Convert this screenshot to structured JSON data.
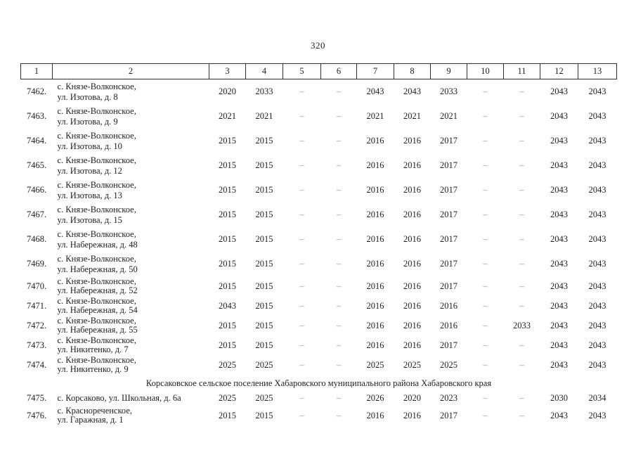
{
  "page": {
    "number": "320"
  },
  "table": {
    "headers": [
      "1",
      "2",
      "3",
      "4",
      "5",
      "6",
      "7",
      "8",
      "9",
      "10",
      "11",
      "12",
      "13"
    ],
    "rows": [
      {
        "type": "entry",
        "spacing": "loose",
        "num": "7462.",
        "address": [
          "с. Князе-Волконское,",
          "ул. Изотова, д. 8"
        ],
        "cols": [
          "2020",
          "2033",
          "–",
          "–",
          "2043",
          "2043",
          "2033",
          "–",
          "–",
          "2043",
          "2043"
        ]
      },
      {
        "type": "entry",
        "spacing": "loose",
        "num": "7463.",
        "address": [
          "с. Князе-Волконское,",
          "ул. Изотова, д. 9"
        ],
        "cols": [
          "2021",
          "2021",
          "–",
          "–",
          "2021",
          "2021",
          "2021",
          "–",
          "–",
          "2043",
          "2043"
        ]
      },
      {
        "type": "entry",
        "spacing": "loose",
        "num": "7464.",
        "address": [
          "с. Князе-Волконское,",
          "ул. Изотова, д. 10"
        ],
        "cols": [
          "2015",
          "2015",
          "–",
          "–",
          "2016",
          "2016",
          "2017",
          "–",
          "–",
          "2043",
          "2043"
        ]
      },
      {
        "type": "entry",
        "spacing": "loose",
        "num": "7465.",
        "address": [
          "с. Князе-Волконское,",
          "ул. Изотова, д. 12"
        ],
        "cols": [
          "2015",
          "2015",
          "–",
          "–",
          "2016",
          "2016",
          "2017",
          "–",
          "–",
          "2043",
          "2043"
        ]
      },
      {
        "type": "entry",
        "spacing": "loose",
        "num": "7466.",
        "address": [
          "с. Князе-Волконское,",
          "ул. Изотова, д. 13"
        ],
        "cols": [
          "2015",
          "2015",
          "–",
          "–",
          "2016",
          "2016",
          "2017",
          "–",
          "–",
          "2043",
          "2043"
        ]
      },
      {
        "type": "entry",
        "spacing": "loose",
        "num": "7467.",
        "address": [
          "с. Князе-Волконское,",
          "ул. Изотова, д. 15"
        ],
        "cols": [
          "2015",
          "2015",
          "–",
          "–",
          "2016",
          "2016",
          "2017",
          "–",
          "–",
          "2043",
          "2043"
        ]
      },
      {
        "type": "entry",
        "spacing": "loose",
        "num": "7468.",
        "address": [
          "с. Князе-Волконское,",
          "ул. Набережная, д. 48"
        ],
        "cols": [
          "2015",
          "2015",
          "–",
          "–",
          "2016",
          "2016",
          "2017",
          "–",
          "–",
          "2043",
          "2043"
        ]
      },
      {
        "type": "entry",
        "spacing": "loose",
        "num": "7469.",
        "address": [
          "с. Князе-Волконское,",
          "ул. Набережная, д. 50"
        ],
        "cols": [
          "2015",
          "2015",
          "–",
          "–",
          "2016",
          "2016",
          "2017",
          "–",
          "–",
          "2043",
          "2043"
        ]
      },
      {
        "type": "entry",
        "spacing": "tight",
        "num": "7470.",
        "address": [
          "с. Князе-Волконское,",
          "ул. Набережная, д. 52"
        ],
        "cols": [
          "2015",
          "2015",
          "–",
          "–",
          "2016",
          "2016",
          "2017",
          "–",
          "–",
          "2043",
          "2043"
        ]
      },
      {
        "type": "entry",
        "spacing": "tight",
        "num": "7471.",
        "address": [
          "с. Князе-Волконское,",
          "ул. Набережная, д. 54"
        ],
        "cols": [
          "2043",
          "2015",
          "–",
          "–",
          "2016",
          "2016",
          "2016",
          "–",
          "–",
          "2043",
          "2043"
        ]
      },
      {
        "type": "entry",
        "spacing": "tight",
        "num": "7472.",
        "address": [
          "с. Князе-Волконское,",
          "ул. Набережная, д. 55"
        ],
        "cols": [
          "2015",
          "2015",
          "–",
          "–",
          "2016",
          "2016",
          "2016",
          "–",
          "2033",
          "2043",
          "2043"
        ]
      },
      {
        "type": "entry",
        "spacing": "tight",
        "num": "7473.",
        "address": [
          "с. Князе-Волконское,",
          "ул. Никитенко, д. 7"
        ],
        "cols": [
          "2015",
          "2015",
          "–",
          "–",
          "2016",
          "2016",
          "2017",
          "–",
          "–",
          "2043",
          "2043"
        ]
      },
      {
        "type": "entry",
        "spacing": "tight",
        "num": "7474.",
        "address": [
          "с. Князе-Волконское,",
          "ул. Никитенко, д. 9"
        ],
        "cols": [
          "2025",
          "2025",
          "–",
          "–",
          "2025",
          "2025",
          "2025",
          "–",
          "–",
          "2043",
          "2043"
        ]
      },
      {
        "type": "section",
        "label": "Корсаковское сельское поселение Хабаровского муниципального района Хабаровского края"
      },
      {
        "type": "entry",
        "spacing": "single",
        "num": "7475.",
        "address": [
          "с. Корсаково, ул. Школьная, д. 6а"
        ],
        "cols": [
          "2025",
          "2025",
          "–",
          "–",
          "2026",
          "2020",
          "2023",
          "–",
          "–",
          "2030",
          "2034"
        ]
      },
      {
        "type": "entry",
        "spacing": "tight",
        "num": "7476.",
        "address": [
          "с. Краснореченское,",
          "ул. Гаражная, д. 1"
        ],
        "cols": [
          "2015",
          "2015",
          "–",
          "–",
          "2016",
          "2016",
          "2017",
          "–",
          "–",
          "2043",
          "2043"
        ]
      }
    ]
  }
}
